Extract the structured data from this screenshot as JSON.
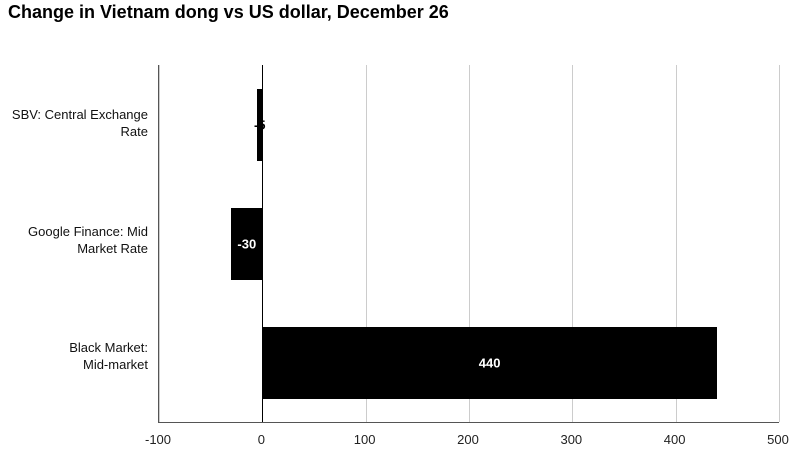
{
  "title": "Change in Vietnam dong vs US dollar, December 26",
  "chart_data": {
    "type": "bar",
    "orientation": "horizontal",
    "title": "Change in Vietnam dong vs US dollar, December 26",
    "categories": [
      "SBV: Central Exchange\nRate",
      "Google Finance: Mid\nMarket Rate",
      "Black Market:\nMid-market"
    ],
    "values": [
      -5,
      -30,
      440
    ],
    "value_labels": [
      "-5",
      "-30",
      "440"
    ],
    "xlabel": "",
    "ylabel": "",
    "xlim": [
      -100,
      500
    ],
    "xticks": [
      -100,
      0,
      100,
      200,
      300,
      400,
      500
    ],
    "xtick_labels": [
      "-100",
      "0",
      "100",
      "200",
      "300",
      "400",
      "500"
    ],
    "grid": true,
    "legend": false
  },
  "colors": {
    "bar": "#000000",
    "grid": "#cccccc",
    "zero_line": "#000000",
    "axis": "#555555",
    "label_inside": "#ffffff",
    "label_outside": "#000000",
    "background": "#ffffff"
  }
}
